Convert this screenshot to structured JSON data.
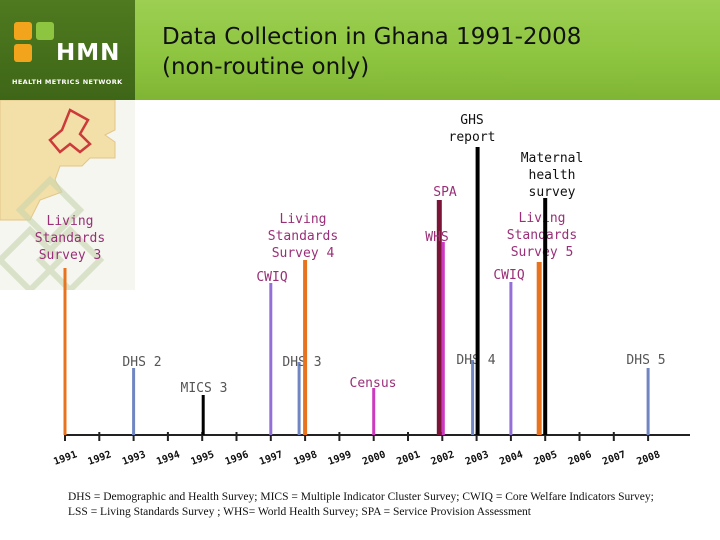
{
  "header": {
    "title": "Data Collection in Ghana 1991-2008",
    "subtitle": "(non-routine only)",
    "logo_text": "HMN",
    "logo_subtext": "HEALTH METRICS NETWORK"
  },
  "colors": {
    "header_green": "#8ec540",
    "logo_dark_green": "#3e6617",
    "axis": "#222222",
    "label_gray": "#555555",
    "label_pink": "#9a2f78",
    "orange": "#e8731e",
    "blue": "#6f86c2",
    "purple": "#9370d8",
    "magenta": "#cc3bbf",
    "black": "#000000",
    "darkred": "#7a1538"
  },
  "chart_data": {
    "type": "timeline",
    "title": "Data Collection in Ghana 1991-2008 (non-routine only)",
    "x_range": [
      1991,
      2008
    ],
    "x_ticks": [
      "1991",
      "1992",
      "1993",
      "1994",
      "1995",
      "1996",
      "1997",
      "1998",
      "1999",
      "2000",
      "2001",
      "2002",
      "2003",
      "2004",
      "2005",
      "2006",
      "2007",
      "2008"
    ],
    "events": [
      {
        "label": "Living Standards Survey 3",
        "lines": [
          "Living",
          "Standards",
          "Survey 3"
        ],
        "year": 1991,
        "color": "#e8731e",
        "label_color": "#9a2f78"
      },
      {
        "label": "DHS 2",
        "lines": [
          "DHS 2"
        ],
        "year": 1993,
        "color": "#6f86c2",
        "label_color": "#555555"
      },
      {
        "label": "MICS 3",
        "lines": [
          "MICS 3"
        ],
        "year": 1995,
        "color": "#000000",
        "label_color": "#555555"
      },
      {
        "label": "CWIQ",
        "lines": [
          "CWIQ"
        ],
        "year": 1997,
        "color": "#9370d8",
        "label_color": "#9a2f78"
      },
      {
        "label": "DHS 3",
        "lines": [
          "DHS 3"
        ],
        "year": 1998,
        "color": "#6f86c2",
        "label_color": "#555555"
      },
      {
        "label": "Living Standards Survey 4",
        "lines": [
          "Living",
          "Standards",
          "Survey 4"
        ],
        "year": 1998,
        "color": "#e8731e",
        "label_color": "#9a2f78"
      },
      {
        "label": "Census",
        "lines": [
          "Census"
        ],
        "year": 2000,
        "color": "#cc3bbf",
        "label_color": "#9a2f78"
      },
      {
        "label": "SPA",
        "lines": [
          "SPA"
        ],
        "year": 2002,
        "color": "#7a1538",
        "label_color": "#9a2f78"
      },
      {
        "label": "WHS",
        "lines": [
          "WHS"
        ],
        "year": 2002,
        "color": "#cc3bbf",
        "label_color": "#9a2f78"
      },
      {
        "label": "DHS 4",
        "lines": [
          "DHS 4"
        ],
        "year": 2003,
        "color": "#6f86c2",
        "label_color": "#555555"
      },
      {
        "label": "GHS report",
        "lines": [
          "GHS",
          "report"
        ],
        "year": 2003,
        "color": "#000000",
        "label_color": "#111111"
      },
      {
        "label": "CWIQ",
        "lines": [
          "CWIQ"
        ],
        "year": 2004,
        "color": "#9370d8",
        "label_color": "#9a2f78"
      },
      {
        "label": "Living Standards Survey 5",
        "lines": [
          "Living",
          "Standards",
          "Survey 5"
        ],
        "year": 2005,
        "color": "#e8731e",
        "label_color": "#9a2f78"
      },
      {
        "label": "Maternal health survey",
        "lines": [
          "Maternal",
          "health",
          "survey"
        ],
        "year": 2005,
        "color": "#000000",
        "label_color": "#111111"
      },
      {
        "label": "DHS 5",
        "lines": [
          "DHS 5"
        ],
        "year": 2008,
        "color": "#6f86c2",
        "label_color": "#555555"
      }
    ]
  },
  "footnote": {
    "line1": "DHS = Demographic and Health Survey; MICS = Multiple Indicator Cluster Survey; CWIQ = Core Welfare Indicators Survey;",
    "line2": "LSS = Living Standards Survey ; WHS= World Health Survey; SPA = Service Provision Assessment"
  }
}
